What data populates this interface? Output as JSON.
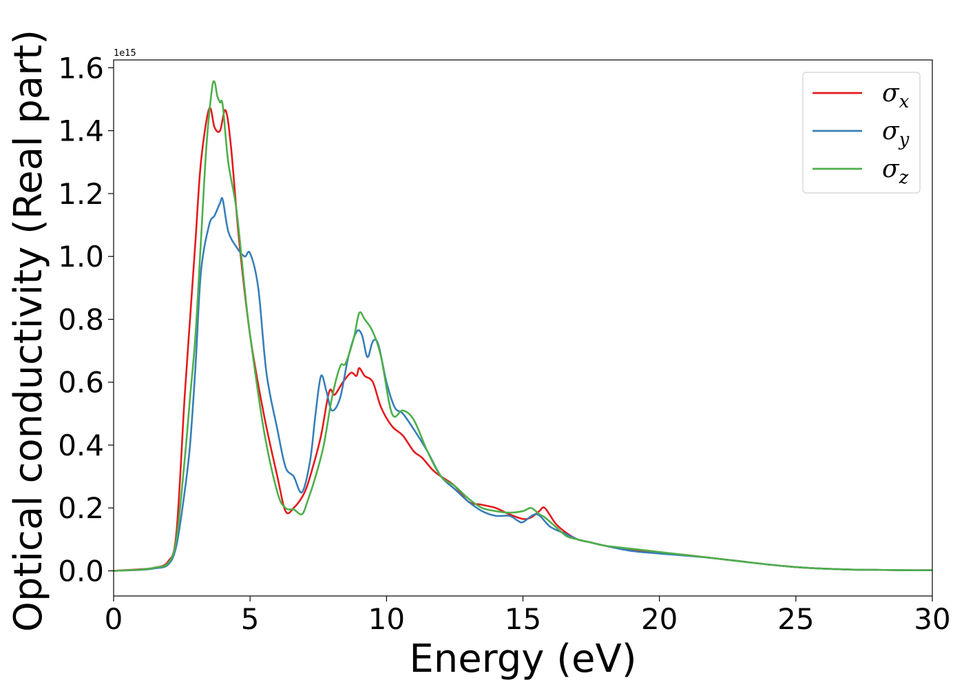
{
  "chart_data": {
    "type": "line",
    "title": "",
    "xlabel": "Energy (eV)",
    "ylabel": "Optical conductivity (Real part)",
    "y_offset_label": "1e15",
    "xlim": [
      0,
      30
    ],
    "ylim": [
      -0.08,
      1.625
    ],
    "xticks": [
      0,
      5,
      10,
      15,
      20,
      25,
      30
    ],
    "yticks": [
      0.0,
      0.2,
      0.4,
      0.6,
      0.8,
      1.0,
      1.2,
      1.4,
      1.6
    ],
    "grid": false,
    "legend_position": "top-right",
    "series": [
      {
        "name": "σx",
        "symbol": "σ",
        "subscript": "x",
        "color": "#e41a1c",
        "x": [
          0,
          1,
          1.5,
          2.0,
          2.3,
          2.6,
          2.8,
          3.0,
          3.2,
          3.5,
          3.7,
          3.9,
          4.1,
          4.3,
          4.6,
          5.0,
          5.5,
          6.0,
          6.3,
          6.6,
          7.0,
          7.3,
          7.6,
          7.9,
          8.1,
          8.4,
          8.7,
          8.9,
          9.0,
          9.2,
          9.5,
          9.8,
          10.2,
          10.6,
          11.0,
          11.3,
          11.7,
          12.0,
          12.5,
          13.0,
          13.5,
          14.0,
          14.5,
          15.0,
          15.3,
          15.6,
          15.8,
          16.2,
          16.6,
          17.0,
          17.5,
          18.0,
          19.0,
          20.0,
          21.0,
          22.0,
          23.0,
          24.0,
          25.0,
          26.0,
          27.0,
          28.0,
          29.0,
          30.0
        ],
        "values": [
          0.0,
          0.005,
          0.01,
          0.03,
          0.12,
          0.55,
          0.8,
          1.05,
          1.3,
          1.47,
          1.41,
          1.4,
          1.465,
          1.35,
          1.05,
          0.75,
          0.5,
          0.3,
          0.19,
          0.2,
          0.25,
          0.33,
          0.43,
          0.57,
          0.56,
          0.6,
          0.63,
          0.62,
          0.645,
          0.62,
          0.6,
          0.52,
          0.46,
          0.43,
          0.38,
          0.36,
          0.32,
          0.3,
          0.27,
          0.22,
          0.21,
          0.2,
          0.18,
          0.165,
          0.17,
          0.19,
          0.2,
          0.15,
          0.12,
          0.1,
          0.09,
          0.08,
          0.065,
          0.058,
          0.05,
          0.04,
          0.03,
          0.02,
          0.012,
          0.007,
          0.004,
          0.003,
          0.002,
          0.002
        ]
      },
      {
        "name": "σy",
        "symbol": "σ",
        "subscript": "y",
        "color": "#377eb8",
        "x": [
          0,
          1,
          1.5,
          2.0,
          2.3,
          2.6,
          2.8,
          3.0,
          3.2,
          3.5,
          3.7,
          3.9,
          4.0,
          4.2,
          4.5,
          4.8,
          5.0,
          5.3,
          5.6,
          6.0,
          6.3,
          6.6,
          6.9,
          7.2,
          7.4,
          7.6,
          7.8,
          8.0,
          8.3,
          8.6,
          8.9,
          9.1,
          9.3,
          9.5,
          9.7,
          10.0,
          10.3,
          10.6,
          11.0,
          11.5,
          12.0,
          12.5,
          13.0,
          13.5,
          14.0,
          14.5,
          14.8,
          15.0,
          15.5,
          16.0,
          16.5,
          17.0,
          17.5,
          18.0,
          19.0,
          20.0,
          21.0,
          22.0,
          23.0,
          24.0,
          25.0,
          26.0,
          27.0,
          28.0,
          29.0,
          30.0
        ],
        "values": [
          0.0,
          0.003,
          0.008,
          0.02,
          0.08,
          0.25,
          0.4,
          0.65,
          0.95,
          1.1,
          1.13,
          1.17,
          1.18,
          1.08,
          1.03,
          1.0,
          1.01,
          0.9,
          0.63,
          0.45,
          0.33,
          0.3,
          0.25,
          0.35,
          0.5,
          0.62,
          0.57,
          0.51,
          0.55,
          0.68,
          0.76,
          0.75,
          0.68,
          0.73,
          0.72,
          0.6,
          0.52,
          0.5,
          0.45,
          0.38,
          0.3,
          0.26,
          0.22,
          0.19,
          0.175,
          0.175,
          0.16,
          0.155,
          0.18,
          0.14,
          0.12,
          0.1,
          0.09,
          0.08,
          0.063,
          0.055,
          0.048,
          0.04,
          0.03,
          0.02,
          0.012,
          0.007,
          0.004,
          0.003,
          0.002,
          0.002
        ]
      },
      {
        "name": "σz",
        "symbol": "σ",
        "subscript": "z",
        "color": "#4daf4a",
        "x": [
          0,
          1,
          1.5,
          2.0,
          2.3,
          2.6,
          2.8,
          3.0,
          3.2,
          3.4,
          3.6,
          3.7,
          3.8,
          3.9,
          4.0,
          4.2,
          4.5,
          4.8,
          5.0,
          5.5,
          6.0,
          6.3,
          6.6,
          6.9,
          7.1,
          7.4,
          7.7,
          8.0,
          8.3,
          8.5,
          8.8,
          9.0,
          9.2,
          9.5,
          9.8,
          10.2,
          10.6,
          11.0,
          11.5,
          12.0,
          12.5,
          13.0,
          13.5,
          14.0,
          14.5,
          15.0,
          15.3,
          15.6,
          15.8,
          16.2,
          16.6,
          17.0,
          17.5,
          18.0,
          19.0,
          20.0,
          21.0,
          22.0,
          23.0,
          24.0,
          25.0,
          26.0,
          27.0,
          28.0,
          29.0,
          30.0
        ],
        "values": [
          0.0,
          0.004,
          0.01,
          0.025,
          0.1,
          0.35,
          0.55,
          0.75,
          1.05,
          1.35,
          1.53,
          1.555,
          1.51,
          1.49,
          1.48,
          1.3,
          1.15,
          0.9,
          0.75,
          0.45,
          0.25,
          0.2,
          0.195,
          0.18,
          0.22,
          0.3,
          0.4,
          0.55,
          0.65,
          0.66,
          0.74,
          0.82,
          0.8,
          0.76,
          0.68,
          0.5,
          0.51,
          0.48,
          0.38,
          0.3,
          0.27,
          0.23,
          0.2,
          0.19,
          0.185,
          0.19,
          0.2,
          0.18,
          0.17,
          0.14,
          0.11,
          0.1,
          0.09,
          0.08,
          0.07,
          0.06,
          0.05,
          0.04,
          0.03,
          0.02,
          0.012,
          0.007,
          0.004,
          0.003,
          0.002,
          0.002
        ]
      }
    ]
  }
}
